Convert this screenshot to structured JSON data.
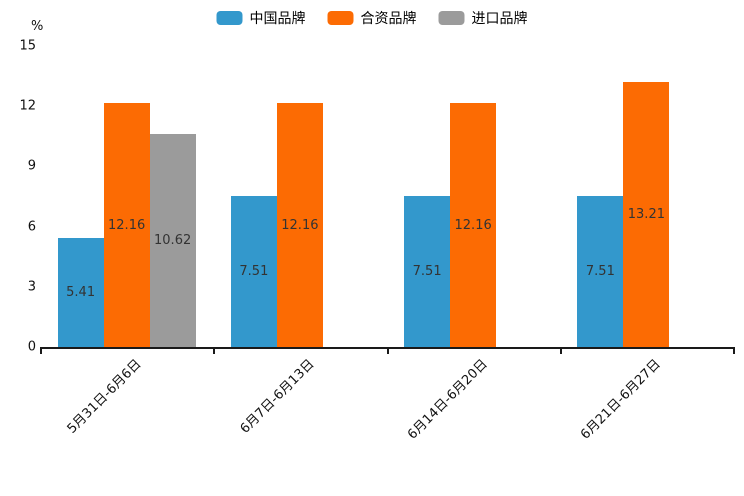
{
  "chart_data": {
    "type": "bar",
    "title": "",
    "unit_label": "%",
    "categories": [
      "5月31日-6月6日",
      "6月7日-6月13日",
      "6月14日-6月20日",
      "6月21日-6月27日"
    ],
    "series": [
      {
        "name": "中国品牌",
        "color": "#3398CC",
        "values": [
          5.41,
          7.51,
          7.51,
          7.51
        ]
      },
      {
        "name": "合资品牌",
        "color": "#FC6B03",
        "values": [
          12.16,
          12.16,
          12.16,
          13.21
        ]
      },
      {
        "name": "进口品牌",
        "color": "#9B9B9B",
        "values": [
          10.62,
          null,
          null,
          null
        ]
      }
    ],
    "ylim": [
      0,
      15
    ],
    "yticks": [
      0,
      3,
      6,
      9,
      12,
      15
    ],
    "grid": false,
    "legend_position": "top",
    "value_labels": "inside-center"
  }
}
